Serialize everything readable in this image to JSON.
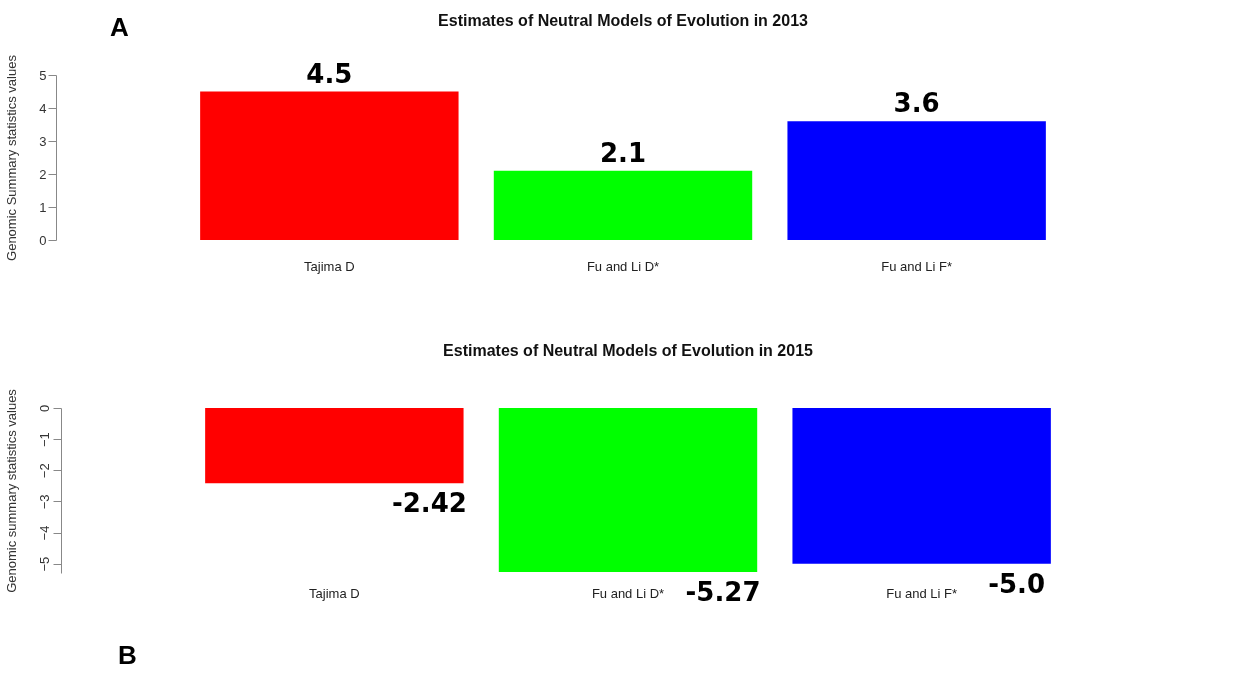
{
  "chart_data": [
    {
      "type": "bar",
      "title": "Estimates of Neutral Models of Evolution in 2013",
      "ylabel": "Genomic Summary statistics values",
      "categories": [
        "Tajima D",
        "Fu and Li D*",
        "Fu and Li F*"
      ],
      "values": [
        4.5,
        2.1,
        3.6
      ],
      "colors": [
        "#ff0000",
        "#00ff00",
        "#0000ff"
      ],
      "ylim": [
        0,
        5
      ],
      "yticks": [
        0,
        1,
        2,
        3,
        4,
        5
      ],
      "data_labels": true,
      "annotations": [
        "A"
      ]
    },
    {
      "type": "bar",
      "title": "Estimates of Neutral Models of Evolution in 2015",
      "ylabel": "Genomic summary statistics values",
      "categories": [
        "Tajima D",
        "Fu and Li D*",
        "Fu and Li F*"
      ],
      "values": [
        -2.42,
        -5.27,
        -5.0
      ],
      "value_labels": [
        "-2.42",
        "-5.27",
        "-5.0"
      ],
      "colors": [
        "#ff0000",
        "#00ff00",
        "#0000ff"
      ],
      "ylim": [
        -5.3,
        0
      ],
      "yticks": [
        0,
        -1,
        -2,
        -3,
        -4,
        -5
      ],
      "annotations": [
        "B"
      ]
    }
  ]
}
